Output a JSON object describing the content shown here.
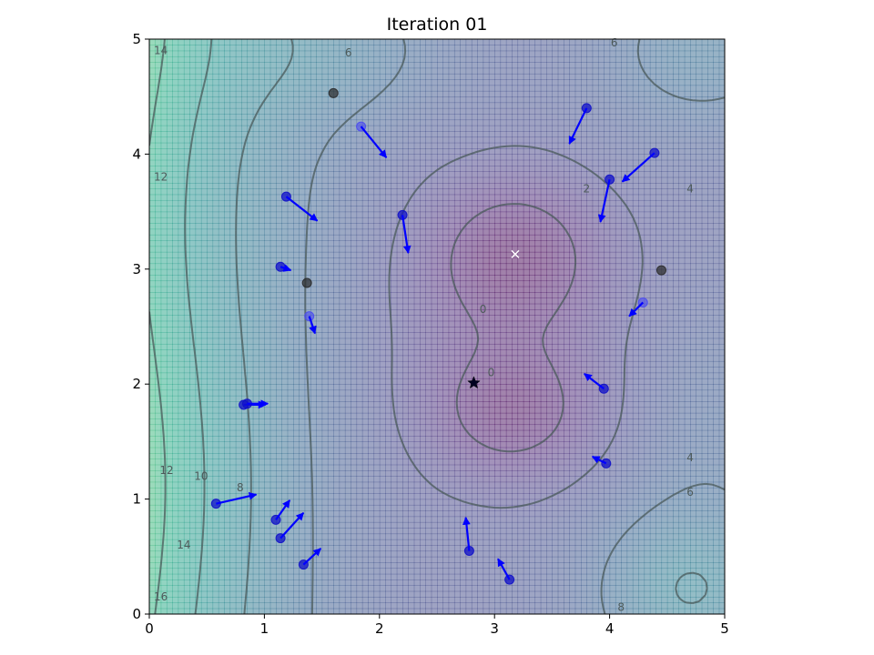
{
  "chart_data": {
    "type": "contour",
    "title": "Iteration 01",
    "xlabel": "",
    "ylabel": "",
    "xlim": [
      0,
      5
    ],
    "ylim": [
      0,
      5
    ],
    "x_ticks": [
      "0",
      "1",
      "2",
      "3",
      "4",
      "5"
    ],
    "y_ticks": [
      "0",
      "1",
      "2",
      "3",
      "4",
      "5"
    ],
    "contour_levels": [
      0,
      2,
      4,
      6,
      8,
      10,
      12,
      14,
      16
    ],
    "colormap": "viridis",
    "contour_labels": [
      {
        "text": "14",
        "x": 0.1,
        "y": 4.9
      },
      {
        "text": "6",
        "x": 1.73,
        "y": 4.88
      },
      {
        "text": "6",
        "x": 4.04,
        "y": 4.97
      },
      {
        "text": "12",
        "x": 0.1,
        "y": 3.8
      },
      {
        "text": "2",
        "x": 3.8,
        "y": 3.7
      },
      {
        "text": "4",
        "x": 4.7,
        "y": 3.7
      },
      {
        "text": "0",
        "x": 2.9,
        "y": 2.65
      },
      {
        "text": "0",
        "x": 2.97,
        "y": 2.1
      },
      {
        "text": "4",
        "x": 4.7,
        "y": 1.36
      },
      {
        "text": "6",
        "x": 4.7,
        "y": 1.06
      },
      {
        "text": "12",
        "x": 0.15,
        "y": 1.25
      },
      {
        "text": "10",
        "x": 0.45,
        "y": 1.2
      },
      {
        "text": "8",
        "x": 0.79,
        "y": 1.1
      },
      {
        "text": "14",
        "x": 0.3,
        "y": 0.6
      },
      {
        "text": "16",
        "x": 0.1,
        "y": 0.15
      },
      {
        "text": "8",
        "x": 4.1,
        "y": 0.06
      }
    ],
    "global_best": {
      "x": 3.18,
      "y": 3.13,
      "marker": "x",
      "color": "#ffffff"
    },
    "best_particle": {
      "x": 2.82,
      "y": 2.01,
      "marker": "star"
    },
    "particles": [
      {
        "x": 1.6,
        "y": 4.53,
        "vx": 0,
        "vy": 0,
        "tone": "gray"
      },
      {
        "x": 1.84,
        "y": 4.24,
        "vx": 0.22,
        "vy": -0.27,
        "tone": "light"
      },
      {
        "x": 3.8,
        "y": 4.4,
        "vx": -0.15,
        "vy": -0.31,
        "tone": "blue"
      },
      {
        "x": 4.39,
        "y": 4.01,
        "vx": -0.28,
        "vy": -0.25,
        "tone": "blue"
      },
      {
        "x": 4.0,
        "y": 3.78,
        "vx": -0.08,
        "vy": -0.37,
        "tone": "blue"
      },
      {
        "x": 1.19,
        "y": 3.63,
        "vx": 0.27,
        "vy": -0.21,
        "tone": "blue"
      },
      {
        "x": 2.2,
        "y": 3.47,
        "vx": 0.05,
        "vy": -0.33,
        "tone": "blue"
      },
      {
        "x": 1.14,
        "y": 3.02,
        "vx": 0.09,
        "vy": -0.03,
        "tone": "blue"
      },
      {
        "x": 1.37,
        "y": 2.88,
        "vx": 0,
        "vy": 0,
        "tone": "gray"
      },
      {
        "x": 4.45,
        "y": 2.99,
        "vx": 0,
        "vy": 0,
        "tone": "gray"
      },
      {
        "x": 4.29,
        "y": 2.71,
        "vx": -0.12,
        "vy": -0.12,
        "tone": "light"
      },
      {
        "x": 1.39,
        "y": 2.59,
        "vx": 0.05,
        "vy": -0.15,
        "tone": "light"
      },
      {
        "x": 0.82,
        "y": 1.82,
        "vx": 0.19,
        "vy": -0.0,
        "tone": "blue"
      },
      {
        "x": 0.85,
        "y": 1.83,
        "vx": 0.18,
        "vy": 0.0,
        "tone": "blue"
      },
      {
        "x": 3.95,
        "y": 1.96,
        "vx": -0.17,
        "vy": 0.13,
        "tone": "blue"
      },
      {
        "x": 3.97,
        "y": 1.31,
        "vx": -0.12,
        "vy": 0.06,
        "tone": "blue"
      },
      {
        "x": 0.58,
        "y": 0.96,
        "vx": 0.35,
        "vy": 0.08,
        "tone": "blue"
      },
      {
        "x": 1.1,
        "y": 0.82,
        "vx": 0.12,
        "vy": 0.17,
        "tone": "blue"
      },
      {
        "x": 1.14,
        "y": 0.66,
        "vx": 0.2,
        "vy": 0.22,
        "tone": "blue"
      },
      {
        "x": 1.34,
        "y": 0.43,
        "vx": 0.15,
        "vy": 0.14,
        "tone": "blue"
      },
      {
        "x": 2.78,
        "y": 0.55,
        "vx": -0.03,
        "vy": 0.29,
        "tone": "blue"
      },
      {
        "x": 3.13,
        "y": 0.3,
        "vx": -0.1,
        "vy": 0.18,
        "tone": "blue"
      }
    ]
  }
}
